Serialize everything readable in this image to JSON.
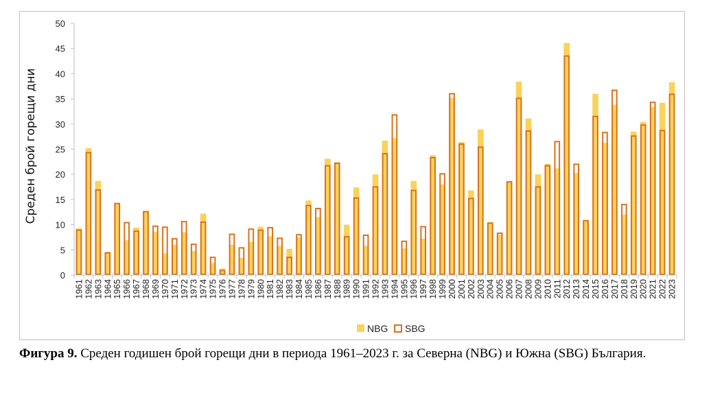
{
  "chart_data": {
    "type": "bar",
    "ylabel": "Среден брой горещи дни",
    "xlabel": "",
    "ylim": [
      0,
      50
    ],
    "yticks": [
      0,
      5,
      10,
      15,
      20,
      25,
      30,
      35,
      40,
      45,
      50
    ],
    "categories": [
      "1961",
      "1962",
      "1963",
      "1964",
      "1965",
      "1966",
      "1967",
      "1968",
      "1969",
      "1970",
      "1971",
      "1972",
      "1973",
      "1974",
      "1975",
      "1976",
      "1977",
      "1978",
      "1979",
      "1980",
      "1981",
      "1982",
      "1983",
      "1984",
      "1985",
      "1986",
      "1987",
      "1988",
      "1989",
      "1990",
      "1991",
      "1992",
      "1993",
      "1994",
      "1995",
      "1996",
      "1997",
      "1998",
      "1999",
      "2000",
      "2001",
      "2002",
      "2003",
      "2004",
      "2005",
      "2006",
      "2007",
      "2008",
      "2009",
      "2010",
      "2011",
      "2012",
      "2013",
      "2014",
      "2015",
      "2016",
      "2017",
      "2018",
      "2019",
      "2020",
      "2021",
      "2022",
      "2023"
    ],
    "series": [
      {
        "name": "NBG",
        "style": "filled",
        "values": [
          9.3,
          25.2,
          18.7,
          4.6,
          14.3,
          6.9,
          9.4,
          12.6,
          8.6,
          4.3,
          6.0,
          8.5,
          4.8,
          12.2,
          2.4,
          1.3,
          6.0,
          3.4,
          6.6,
          9.6,
          7.7,
          5.8,
          5.2,
          7.5,
          14.8,
          11.5,
          23.1,
          22.4,
          10.0,
          17.4,
          5.8,
          20.0,
          26.7,
          27.2,
          5.3,
          18.7,
          7.2,
          23.8,
          18.0,
          35.2,
          26.4,
          16.8,
          28.9,
          10.5,
          8.0,
          18.6,
          38.4,
          31.1,
          20.0,
          22.1,
          21.2,
          46.1,
          20.3,
          10.8,
          36.0,
          26.3,
          33.8,
          12.0,
          28.5,
          30.4,
          33.4,
          34.2,
          38.3
        ]
      },
      {
        "name": "SBG",
        "style": "outline",
        "values": [
          8.9,
          24.3,
          16.9,
          4.4,
          14.2,
          10.4,
          8.7,
          12.6,
          9.7,
          9.5,
          7.2,
          10.6,
          6.1,
          10.5,
          3.5,
          0.9,
          8.1,
          5.4,
          9.1,
          8.9,
          9.4,
          7.3,
          3.5,
          8.0,
          13.8,
          13.2,
          21.7,
          22.2,
          7.6,
          15.3,
          7.9,
          17.5,
          24.1,
          31.8,
          6.7,
          16.8,
          9.6,
          23.3,
          20.1,
          36.0,
          26.0,
          15.2,
          25.4,
          10.3,
          8.3,
          18.5,
          35.1,
          28.6,
          17.5,
          21.7,
          26.5,
          43.5,
          22.0,
          10.8,
          31.5,
          28.3,
          36.7,
          14.0,
          27.6,
          29.8,
          34.3,
          28.7,
          35.9
        ]
      }
    ],
    "legend": {
      "position": "bottom",
      "entries": [
        "NBG",
        "SBG"
      ]
    },
    "grid": false
  },
  "colors": {
    "nbg_fill": "#FAD25C",
    "sbg_stroke": "#D9711C",
    "axis": "#bfbfbf"
  },
  "caption": {
    "bold": "Фигура 9.",
    "text": " Среден годишен брой горещи дни в периода 1961–2023 г. за Северна (NBG) и Южна (SBG) България."
  }
}
